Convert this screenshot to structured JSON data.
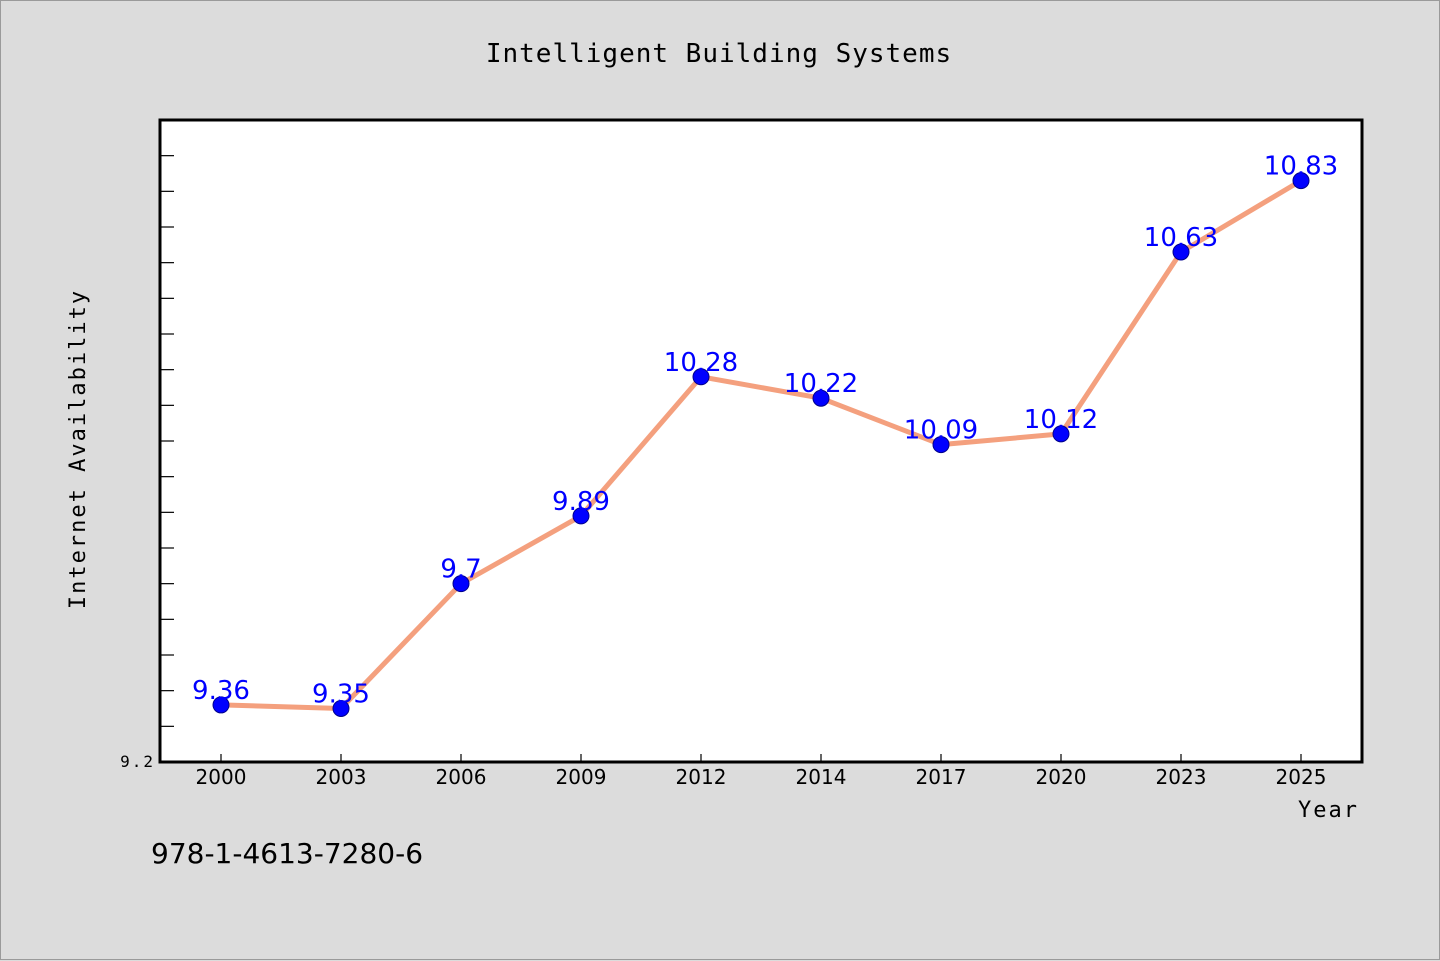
{
  "chart_data": {
    "type": "line",
    "title": "Intelligent Building Systems",
    "xlabel": "Year",
    "ylabel": "Internet Availability",
    "categories": [
      "2000",
      "2003",
      "2006",
      "2009",
      "2012",
      "2014",
      "2017",
      "2020",
      "2023",
      "2025"
    ],
    "series": [
      {
        "values": [
          9.36,
          9.35,
          9.7,
          9.89,
          10.28,
          10.22,
          10.09,
          10.12,
          10.63,
          10.83
        ],
        "data_labels": [
          "9.36",
          "9.35",
          "9.7",
          "9.89",
          "10.28",
          "10.22",
          "10.09",
          "10.12",
          "10.63",
          "10.83"
        ]
      }
    ],
    "ylim": [
      9.2,
      11.0
    ],
    "yticks_labeled": [
      "9.2"
    ],
    "grid": false,
    "line_color": "#f4a07e",
    "marker_color": "#0000ff",
    "label_color": "#0000ff"
  },
  "footer": {
    "text": "978-1-4613-7280-6"
  }
}
